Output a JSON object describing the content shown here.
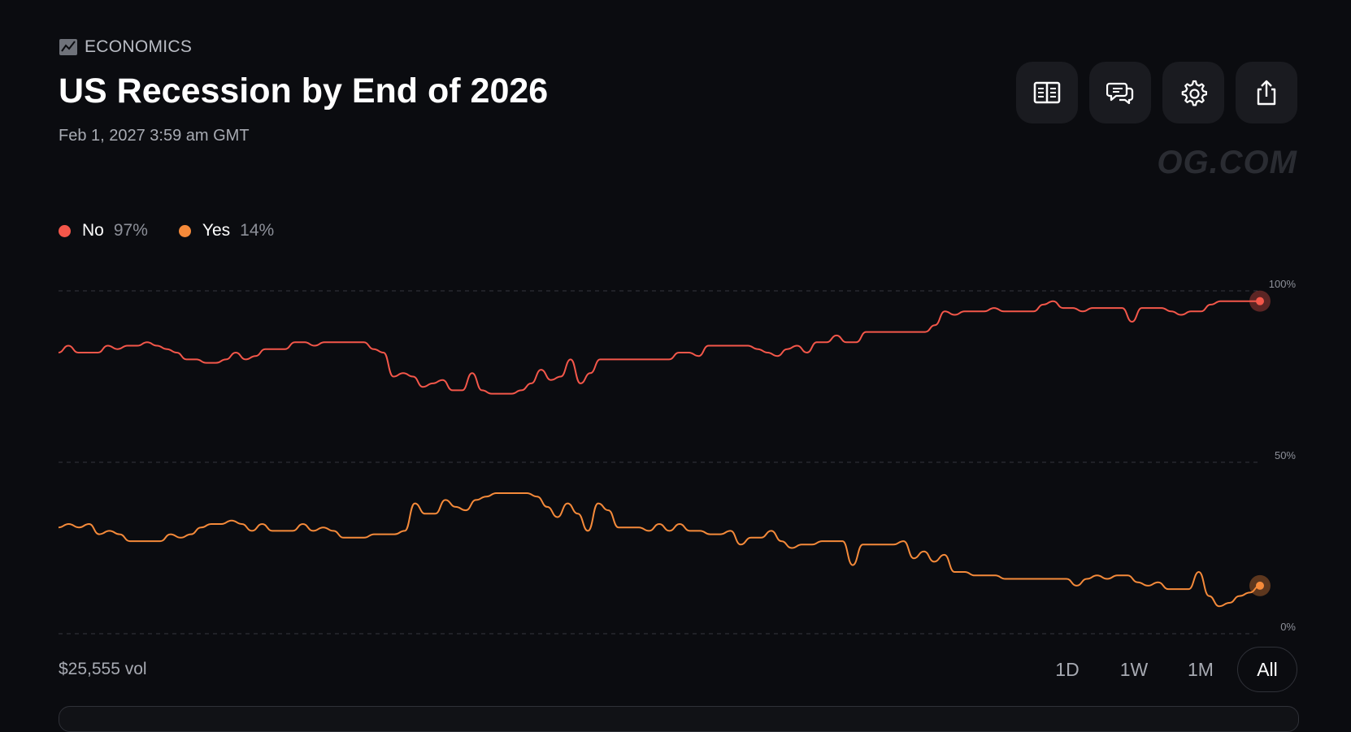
{
  "header": {
    "category": "ECONOMICS",
    "title": "US Recession by End of 2026",
    "date": "Feb 1, 2027 3:59 am GMT",
    "watermark": "OG.COM"
  },
  "toolbar": {
    "buttons": [
      {
        "icon": "rules-book-icon"
      },
      {
        "icon": "comments-icon"
      },
      {
        "icon": "settings-gear-icon"
      },
      {
        "icon": "share-icon"
      }
    ]
  },
  "legend": [
    {
      "name": "No",
      "value": "97%",
      "color": "#f4574a"
    },
    {
      "name": "Yes",
      "value": "14%",
      "color": "#f58a3a"
    }
  ],
  "footer": {
    "volume": "$25,555 vol",
    "ranges": [
      "1D",
      "1W",
      "1M",
      "All"
    ],
    "active_range": "All"
  },
  "chart_data": {
    "type": "line",
    "y_ticks": [
      "100%",
      "50%",
      "0%"
    ],
    "ylim": [
      0,
      100
    ],
    "grid": true,
    "series": [
      {
        "name": "No",
        "color": "#f4574a",
        "values": [
          82,
          84,
          82,
          82,
          82,
          84,
          83,
          84,
          84,
          85,
          84,
          83,
          82,
          80,
          80,
          79,
          79,
          80,
          82,
          80,
          81,
          83,
          83,
          83,
          85,
          85,
          84,
          85,
          85,
          85,
          85,
          85,
          83,
          82,
          75,
          76,
          75,
          72,
          73,
          74,
          71,
          71,
          76,
          71,
          70,
          70,
          70,
          71,
          73,
          77,
          74,
          75,
          80,
          73,
          76,
          80,
          80,
          80,
          80,
          80,
          80,
          80,
          80,
          82,
          82,
          81,
          84,
          84,
          84,
          84,
          84,
          83,
          82,
          81,
          83,
          84,
          82,
          85,
          85,
          87,
          85,
          85,
          88,
          88,
          88,
          88,
          88,
          88,
          88,
          90,
          94,
          93,
          94,
          94,
          94,
          95,
          94,
          94,
          94,
          94,
          96,
          97,
          95,
          95,
          94,
          95,
          95,
          95,
          95,
          91,
          95,
          95,
          95,
          94,
          93,
          94,
          94,
          96,
          97,
          97,
          97,
          97,
          97
        ]
      },
      {
        "name": "Yes",
        "color": "#f58a3a",
        "values": [
          31,
          32,
          31,
          32,
          29,
          30,
          29,
          27,
          27,
          27,
          27,
          29,
          28,
          29,
          31,
          32,
          32,
          33,
          32,
          30,
          32,
          30,
          30,
          30,
          32,
          30,
          31,
          30,
          28,
          28,
          28,
          29,
          29,
          29,
          30,
          38,
          35,
          35,
          39,
          37,
          36,
          39,
          40,
          41,
          41,
          41,
          41,
          40,
          37,
          34,
          38,
          35,
          30,
          38,
          36,
          31,
          31,
          31,
          30,
          32,
          30,
          32,
          30,
          30,
          29,
          29,
          30,
          26,
          28,
          28,
          30,
          27,
          25,
          26,
          26,
          27,
          27,
          27,
          20,
          26,
          26,
          26,
          26,
          27,
          22,
          24,
          21,
          23,
          18,
          18,
          17,
          17,
          17,
          16,
          16,
          16,
          16,
          16,
          16,
          16,
          14,
          16,
          17,
          16,
          17,
          17,
          15,
          14,
          15,
          13,
          13,
          13,
          18,
          11,
          8,
          9,
          11,
          12,
          14
        ]
      }
    ]
  }
}
